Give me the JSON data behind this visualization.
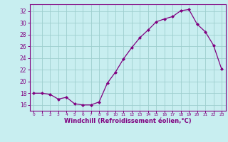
{
  "x": [
    0,
    1,
    2,
    3,
    4,
    5,
    6,
    7,
    8,
    9,
    10,
    11,
    12,
    13,
    14,
    15,
    16,
    17,
    18,
    19,
    20,
    21,
    22,
    23
  ],
  "y": [
    18.0,
    18.0,
    17.8,
    17.0,
    17.3,
    16.2,
    16.0,
    16.0,
    16.5,
    19.7,
    21.6,
    23.9,
    25.8,
    27.5,
    28.8,
    30.2,
    30.7,
    31.1,
    32.1,
    32.3,
    29.8,
    28.5,
    26.2,
    22.1
  ],
  "line_color": "#800080",
  "marker": "D",
  "marker_size": 2.0,
  "bg_color": "#c8eef0",
  "grid_color": "#9ecece",
  "xlabel": "Windchill (Refroidissement éolien,°C)",
  "ylabel_ticks": [
    16,
    18,
    20,
    22,
    24,
    26,
    28,
    30,
    32
  ],
  "ylim": [
    15.0,
    33.2
  ],
  "xlim": [
    -0.5,
    23.5
  ],
  "tick_color": "#800080",
  "label_color": "#800080",
  "spine_color": "#800080",
  "ytick_fontsize": 5.5,
  "xtick_fontsize": 4.2,
  "xlabel_fontsize": 6.0
}
